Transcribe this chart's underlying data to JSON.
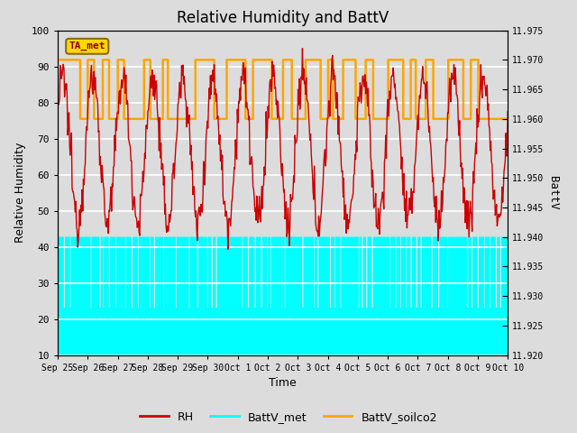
{
  "title": "Relative Humidity and BattV",
  "xlabel": "Time",
  "ylabel_left": "Relative Humidity",
  "ylabel_right": "BattV",
  "annotation_text": "TA_met",
  "annotation_box_color": "#FFD700",
  "annotation_text_color": "#8B0000",
  "ylim_left": [
    10,
    100
  ],
  "ylim_right": [
    11.92,
    11.975
  ],
  "yticks_left": [
    10,
    20,
    30,
    40,
    50,
    60,
    70,
    80,
    90,
    100
  ],
  "yticks_right": [
    11.92,
    11.925,
    11.93,
    11.935,
    11.94,
    11.945,
    11.95,
    11.955,
    11.96,
    11.965,
    11.97,
    11.975
  ],
  "xticklabels": [
    "Sep 25",
    "Sep 26",
    "Sep 27",
    "Sep 28",
    "Sep 29",
    "Sep 30",
    "Oct 1",
    "Oct 2",
    "Oct 3",
    "Oct 4",
    "Oct 5",
    "Oct 6",
    "Oct 7",
    "Oct 8",
    "Oct 9",
    "Oct 10"
  ],
  "background_color": "#DCDCDC",
  "plot_bg_color": "#DCDCDC",
  "grid_color": "white",
  "RH_color": "#CC0000",
  "BattV_met_color": "cyan",
  "BattV_soilco2_color": "#FFA500",
  "legend_labels": [
    "RH",
    "BattV_met",
    "BattV_soilco2"
  ],
  "title_fontsize": 12,
  "axis_label_fontsize": 9,
  "tick_fontsize": 8,
  "n_days": 15,
  "batt_met_high": 11.94,
  "batt_met_low": 11.928,
  "batt_soilco2_high": 11.97,
  "batt_soilco2_low": 11.96
}
